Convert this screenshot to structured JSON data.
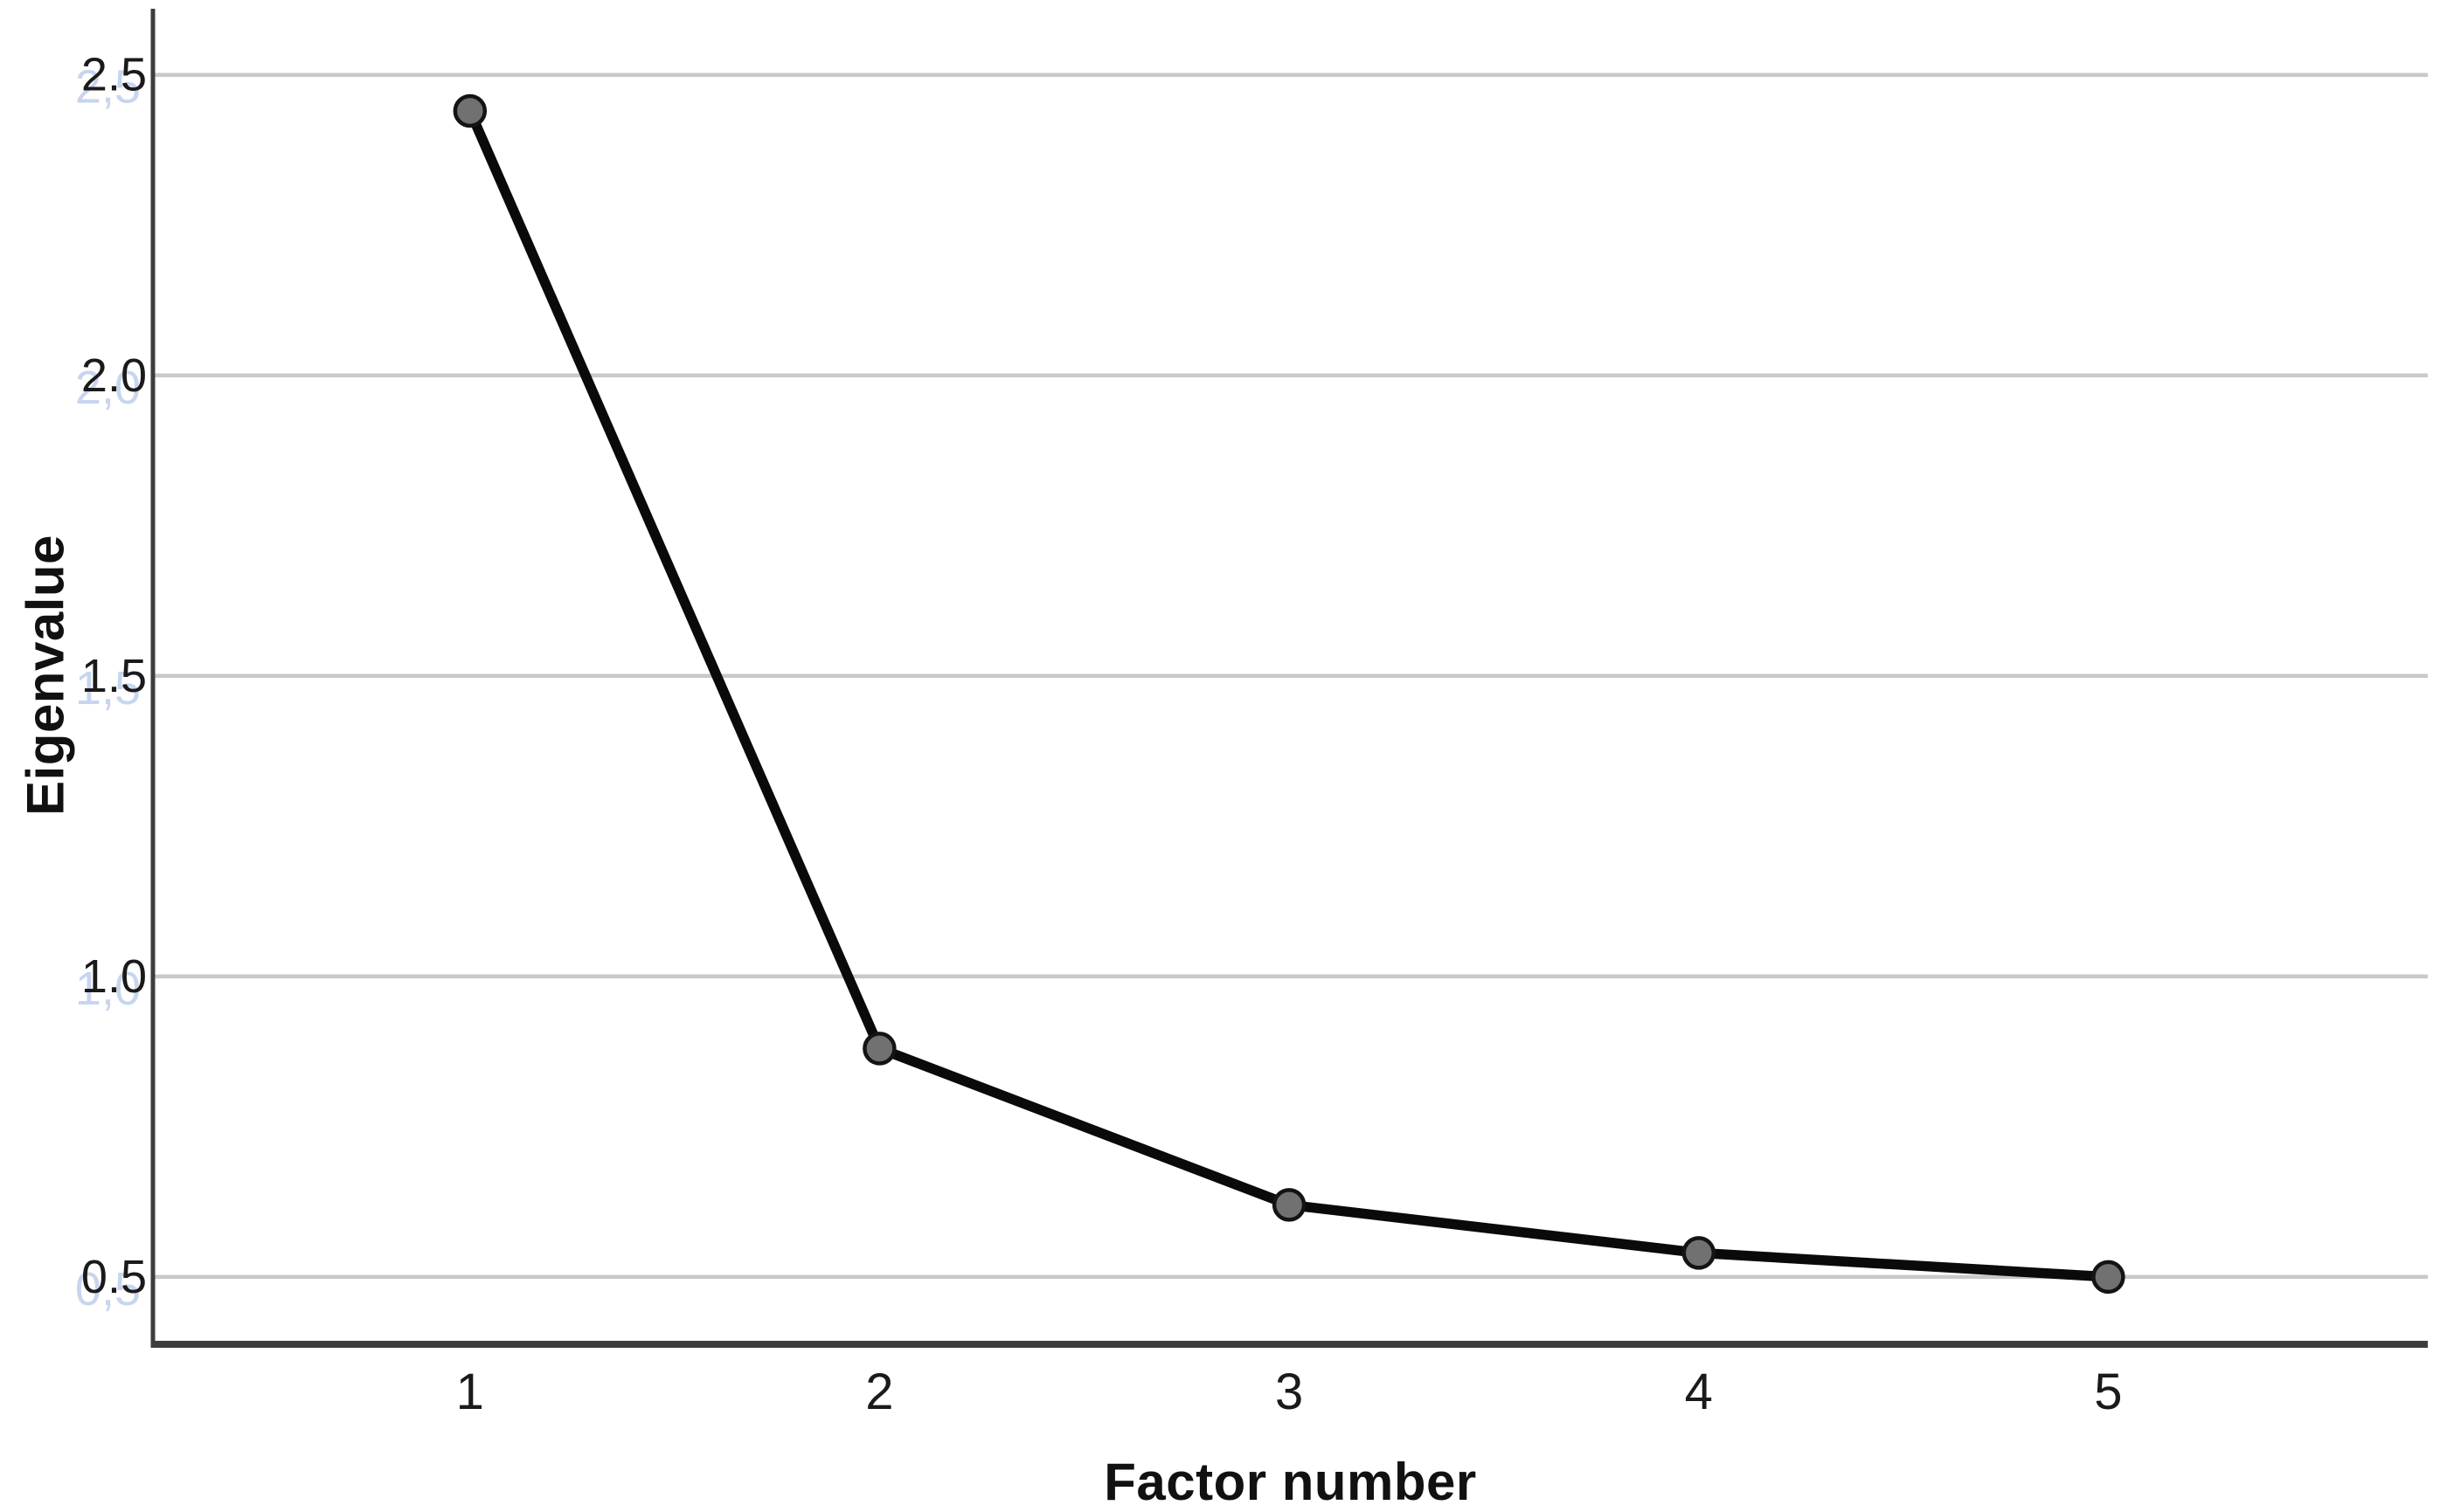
{
  "chart_data": {
    "type": "line",
    "title": "",
    "xlabel": "Factor number",
    "ylabel": "Eigenvalue",
    "x": [
      1,
      2,
      3,
      4,
      5
    ],
    "series": [
      {
        "name": "Eigenvalue",
        "values": [
          2.44,
          0.88,
          0.62,
          0.54,
          0.5
        ]
      }
    ],
    "xtick_labels": [
      "1",
      "2",
      "3",
      "4",
      "5"
    ],
    "ytick_values": [
      0.5,
      1.0,
      1.5,
      2.0,
      2.5
    ],
    "ytick_labels": [
      "0.5",
      "1.0",
      "1.5",
      "2.0",
      "2.5"
    ],
    "ytick_ghost_labels": [
      "0,5",
      "1,0",
      "1,5",
      "2,0",
      "2,5"
    ],
    "xlim": [
      0.226,
      5.78
    ],
    "ylim": [
      0.388,
      2.61
    ],
    "grid": "horizontal",
    "legend": "none",
    "marker": "filled-circle",
    "colors": {
      "line": "#0a0a0a",
      "marker_fill": "#717171",
      "marker_edge": "#141414",
      "gridline": "#c9c9c9",
      "axis": "#3d3d3d",
      "tick_label": "#1a1a1a",
      "ghost_label": "#c7d5ef",
      "background": "#ffffff"
    }
  }
}
